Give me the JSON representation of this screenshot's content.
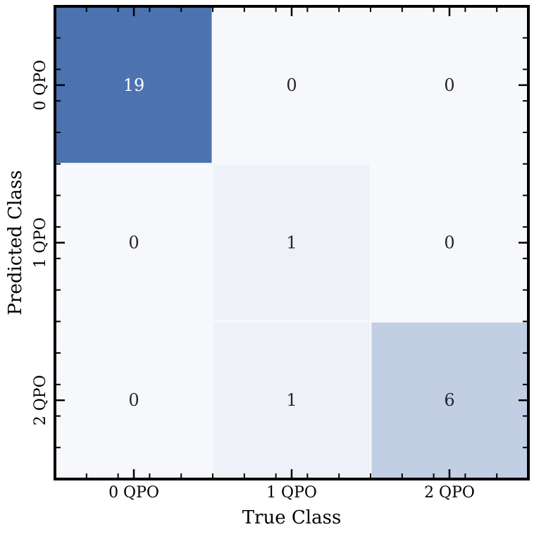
{
  "chart_data": {
    "type": "heatmap",
    "title": "",
    "xlabel": "True Class",
    "ylabel": "Predicted Class",
    "x_categories": [
      "0 QPO",
      "1 QPO",
      "2 QPO"
    ],
    "y_categories": [
      "0 QPO",
      "1 QPO",
      "2 QPO"
    ],
    "values": [
      [
        19,
        0,
        0
      ],
      [
        0,
        1,
        0
      ],
      [
        0,
        1,
        6
      ]
    ],
    "color_scale": {
      "low": "#f7f8fc",
      "high": "#4c72b0"
    },
    "text_color_dark": "#262626",
    "text_color_light": "#ffffff"
  }
}
